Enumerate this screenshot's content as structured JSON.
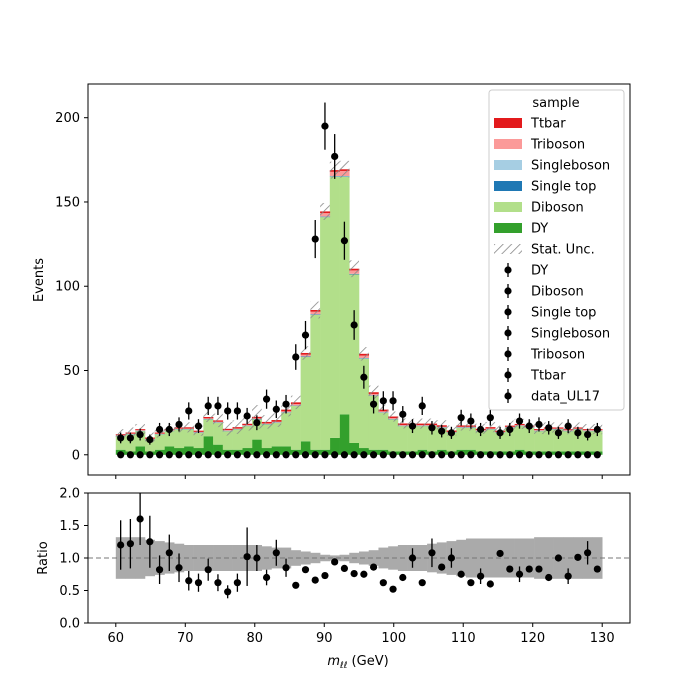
{
  "chart_data": [
    {
      "type": "bar",
      "panel": "main",
      "stacked": true,
      "ylabel": "Events",
      "xlim": [
        56,
        134
      ],
      "ylim": [
        -12,
        220
      ],
      "yticks": [
        0,
        50,
        100,
        150,
        200
      ],
      "bin_edges": [
        60,
        61.4,
        62.8,
        64.2,
        65.6,
        67,
        68.4,
        69.8,
        71.2,
        72.6,
        74,
        75.4,
        76.8,
        78.2,
        79.6,
        81,
        82.4,
        83.8,
        85.2,
        86.6,
        88,
        89.4,
        90.8,
        92.2,
        93.6,
        95,
        96.4,
        97.8,
        99.2,
        100.6,
        102,
        103.4,
        104.8,
        106.2,
        107.6,
        109,
        110.4,
        111.8,
        113.2,
        114.6,
        116,
        117.4,
        118.8,
        120.2,
        121.6,
        123,
        124.4,
        125.8,
        127.2,
        128.6,
        130
      ],
      "series": [
        {
          "name": "DY",
          "color": "#33a02c",
          "values": [
            3,
            2,
            5,
            2,
            3,
            5,
            4,
            5,
            4,
            11,
            6,
            3,
            3,
            4,
            9,
            4,
            5,
            5,
            3,
            8,
            3,
            3,
            10,
            24,
            7,
            4,
            3,
            3,
            2,
            2,
            2,
            3,
            2,
            3,
            2,
            3,
            3,
            2,
            2,
            2,
            2,
            3,
            2,
            2,
            2,
            2,
            2,
            2,
            2,
            2
          ]
        },
        {
          "name": "Diboson",
          "color": "#b2df8a",
          "values": [
            8,
            10,
            9,
            7,
            9,
            9,
            11,
            10,
            9,
            10,
            13,
            11,
            12,
            13,
            12,
            14,
            14,
            20,
            26,
            50,
            80,
            138,
            155,
            141,
            100,
            53,
            32,
            22,
            19,
            15,
            15,
            14,
            15,
            13,
            11,
            13,
            13,
            12,
            13,
            11,
            14,
            14,
            14,
            12,
            13,
            13,
            12,
            13,
            12,
            12
          ]
        },
        {
          "name": "Single top",
          "color": "#1f78b4",
          "values": [
            0.2,
            0.2,
            0.2,
            0.2,
            0.2,
            0.2,
            0.2,
            0.2,
            0.2,
            0.2,
            0.2,
            0.2,
            0.2,
            0.2,
            0.2,
            0.2,
            0.2,
            0.2,
            0.2,
            0.3,
            0.3,
            0.3,
            0.3,
            0.3,
            0.3,
            0.3,
            0.2,
            0.2,
            0.2,
            0.2,
            0.2,
            0.2,
            0.2,
            0.2,
            0.2,
            0.2,
            0.2,
            0.2,
            0.2,
            0.2,
            0.2,
            0.2,
            0.2,
            0.2,
            0.2,
            0.2,
            0.2,
            0.2,
            0.2,
            0.2
          ]
        },
        {
          "name": "Singleboson",
          "color": "#a6cee3",
          "values": [
            0.1,
            0.1,
            0.1,
            0.1,
            0.1,
            0.1,
            0.1,
            0.1,
            0.1,
            0.1,
            0.1,
            0.1,
            0.1,
            0.1,
            0.1,
            0.1,
            0.1,
            0.1,
            0.1,
            0.1,
            0.1,
            0.1,
            0.1,
            0.1,
            0.1,
            0.1,
            0.1,
            0.1,
            0.1,
            0.1,
            0.1,
            0.1,
            0.1,
            0.1,
            0.1,
            0.1,
            0.1,
            0.1,
            0.1,
            0.1,
            0.1,
            0.1,
            0.1,
            0.1,
            0.1,
            0.1,
            0.1,
            0.1,
            0.1,
            0.1
          ]
        },
        {
          "name": "Triboson",
          "color": "#fb9a99",
          "values": [
            0.3,
            0.3,
            0.3,
            0.3,
            0.3,
            0.3,
            0.3,
            0.3,
            0.3,
            0.3,
            0.3,
            0.3,
            0.3,
            0.3,
            0.3,
            0.3,
            0.3,
            0.5,
            0.8,
            1,
            1.5,
            2,
            2.5,
            3,
            2,
            1.5,
            0.8,
            0.5,
            0.4,
            0.3,
            0.3,
            0.3,
            0.3,
            0.3,
            0.3,
            0.3,
            0.3,
            0.3,
            0.3,
            0.3,
            0.3,
            0.3,
            0.3,
            0.3,
            0.3,
            0.3,
            0.3,
            0.3,
            0.3,
            0.3
          ]
        },
        {
          "name": "Ttbar",
          "color": "#e31a1c",
          "values": [
            0.6,
            0.6,
            0.6,
            0.6,
            0.6,
            0.6,
            0.6,
            0.7,
            0.7,
            0.8,
            0.8,
            0.8,
            0.8,
            0.8,
            0.9,
            0.9,
            1,
            1,
            1,
            1,
            1,
            1,
            1,
            1,
            1,
            1,
            1,
            1,
            1,
            1,
            0.9,
            0.9,
            0.9,
            0.9,
            0.8,
            0.8,
            0.8,
            0.8,
            0.8,
            0.7,
            0.7,
            0.7,
            0.7,
            0.7,
            0.6,
            0.6,
            0.6,
            0.6,
            0.6,
            0.6
          ]
        }
      ],
      "stat_unc": [
        3,
        3,
        3,
        3,
        3,
        3,
        3,
        3,
        3,
        3,
        4,
        4,
        4,
        4,
        7,
        4,
        4,
        4,
        4,
        4,
        5,
        5,
        5,
        5,
        5,
        4,
        4,
        3,
        3,
        3,
        3,
        3,
        3,
        3,
        3,
        3,
        3,
        3,
        3,
        3,
        3,
        3,
        3,
        3,
        3,
        3,
        3,
        3,
        3,
        3
      ],
      "stat_unc_label": "Stat. Unc.",
      "data_markers": {
        "x": [
          60.7,
          62.1,
          63.5,
          64.9,
          66.3,
          67.7,
          69.1,
          70.5,
          71.9,
          73.3,
          74.7,
          76.1,
          77.5,
          78.9,
          80.3,
          81.7,
          83.1,
          84.5,
          85.9,
          87.3,
          88.7,
          90.1,
          91.5,
          92.9,
          94.3,
          95.7,
          97.1,
          98.5,
          99.9,
          101.3,
          102.7,
          104.1,
          105.5,
          106.9,
          108.3,
          109.7,
          111.1,
          112.5,
          113.9,
          115.3,
          116.7,
          118.1,
          119.5,
          120.9,
          122.3,
          123.7,
          125.1,
          126.5,
          127.9,
          129.3
        ],
        "y": [
          10,
          10,
          12,
          9,
          15,
          15,
          18,
          26,
          17,
          29,
          29,
          26,
          26,
          23,
          19,
          33,
          27,
          30,
          58,
          71,
          128,
          195,
          177,
          127,
          77,
          46,
          30,
          32,
          32,
          24,
          17,
          29,
          16,
          14,
          13,
          22,
          20,
          15,
          22,
          13,
          15,
          20,
          17,
          18,
          16,
          13,
          17,
          13,
          12,
          15
        ],
        "err": [
          3.2,
          3.2,
          3.5,
          3,
          3.9,
          3.9,
          4.2,
          5.1,
          4.1,
          5.4,
          5.4,
          5.1,
          5.1,
          4.8,
          4.4,
          5.7,
          5.2,
          5.5,
          7.6,
          8.4,
          11.3,
          14,
          13.3,
          11.3,
          8.8,
          6.8,
          5.5,
          5.7,
          5.7,
          4.9,
          4.1,
          5.4,
          4,
          3.7,
          3.6,
          4.7,
          4.5,
          3.9,
          4.7,
          3.6,
          3.9,
          4.5,
          4.1,
          4.2,
          4,
          3.6,
          4.1,
          3.6,
          3.5,
          3.9
        ]
      },
      "zero_markers": [
        "DY",
        "Diboson",
        "Single top",
        "Singleboson",
        "Triboson",
        "Ttbar"
      ],
      "data_label": "data_UL17",
      "legend": {
        "title": "sample",
        "position": "upper right",
        "entries": [
          "Ttbar",
          "Triboson",
          "Singleboson",
          "Single top",
          "Diboson",
          "DY",
          "Stat. Unc.",
          "DY",
          "Diboson",
          "Single top",
          "Singleboson",
          "Triboson",
          "Ttbar",
          "data_UL17"
        ]
      }
    },
    {
      "type": "scatter",
      "panel": "ratio",
      "ylabel": "Ratio",
      "xlabel": "m_ℓℓ (GeV)",
      "xlim": [
        56,
        134
      ],
      "ylim": [
        0,
        2.0
      ],
      "yticks": [
        0.0,
        0.5,
        1.0,
        1.5,
        2.0
      ],
      "xticks": [
        60,
        70,
        80,
        90,
        100,
        110,
        120,
        130
      ],
      "reference_line": 1.0,
      "x": [
        60.7,
        62.1,
        63.5,
        64.9,
        66.3,
        67.7,
        69.1,
        70.5,
        71.9,
        73.3,
        74.7,
        76.1,
        77.5,
        78.9,
        80.3,
        81.7,
        83.1,
        84.5,
        85.9,
        87.3,
        88.7,
        90.1,
        91.5,
        92.9,
        94.3,
        95.7,
        97.1,
        98.5,
        99.9,
        101.3,
        102.7,
        104.1,
        105.5,
        106.9,
        108.3,
        109.7,
        111.1,
        112.5,
        113.9,
        115.3,
        116.7,
        118.1,
        119.5,
        120.9,
        122.3,
        123.7,
        125.1,
        126.5,
        127.9,
        129.3
      ],
      "ratio": [
        1.2,
        1.22,
        1.6,
        1.25,
        0.82,
        1.08,
        0.85,
        0.65,
        0.62,
        0.82,
        0.62,
        0.48,
        0.62,
        1.02,
        1.0,
        0.7,
        1.08,
        0.85,
        0.58,
        0.82,
        0.66,
        0.73,
        0.94,
        0.84,
        0.76,
        0.75,
        0.86,
        0.62,
        0.52,
        0.7,
        1.0,
        0.62,
        1.08,
        0.86,
        1.0,
        0.75,
        0.62,
        0.72,
        0.6,
        1.07,
        0.83,
        0.75,
        0.83,
        0.83,
        0.7,
        1.0,
        0.72,
        1.01,
        1.08,
        0.83
      ],
      "ratio_err": [
        0.38,
        0.38,
        0.4,
        0.4,
        0.22,
        0.28,
        0.22,
        0.15,
        0.14,
        0.17,
        0.13,
        0.1,
        0.14,
        0.45,
        0.2,
        0.12,
        0.2,
        0.14,
        0,
        0,
        0,
        0,
        0,
        0,
        0,
        0,
        0,
        0,
        0,
        0,
        0.15,
        0,
        0.22,
        0,
        0.15,
        0,
        0,
        0.12,
        0,
        0,
        0,
        0.12,
        0,
        0,
        0,
        0,
        0.12,
        0,
        0.18,
        0
      ],
      "band_halfwidth": [
        0.32,
        0.32,
        0.32,
        0.28,
        0.26,
        0.24,
        0.22,
        0.2,
        0.2,
        0.2,
        0.2,
        0.2,
        0.2,
        0.2,
        0.2,
        0.18,
        0.16,
        0.16,
        0.12,
        0.1,
        0.08,
        0.05,
        0.04,
        0.05,
        0.08,
        0.1,
        0.12,
        0.16,
        0.18,
        0.2,
        0.2,
        0.2,
        0.22,
        0.24,
        0.26,
        0.28,
        0.3,
        0.3,
        0.3,
        0.3,
        0.3,
        0.3,
        0.3,
        0.32,
        0.32,
        0.32,
        0.32,
        0.32,
        0.32,
        0.32
      ]
    }
  ]
}
